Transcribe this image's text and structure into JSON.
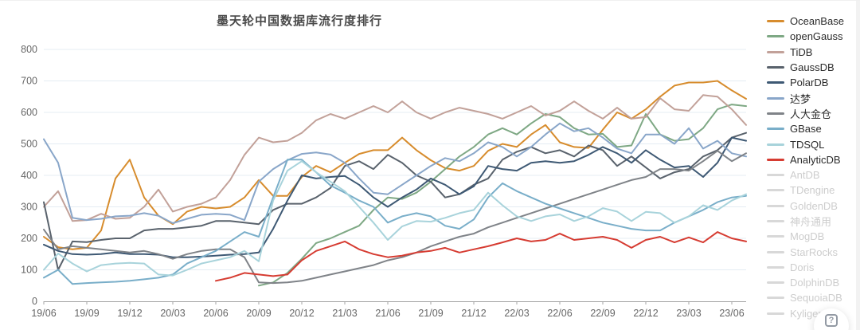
{
  "page": {
    "background": "#ffffff"
  },
  "chart_data": {
    "type": "line",
    "title": "墨天轮中国数据库流行度排行",
    "xlabel": "",
    "ylabel": "",
    "ylim": [
      0,
      800
    ],
    "y_ticks": [
      0,
      100,
      200,
      300,
      400,
      500,
      600,
      700,
      800
    ],
    "grid": true,
    "legend_position": "right",
    "x": [
      "19/06",
      "19/07",
      "19/08",
      "19/09",
      "19/10",
      "19/11",
      "19/12",
      "20/01",
      "20/02",
      "20/03",
      "20/04",
      "20/05",
      "20/06",
      "20/07",
      "20/08",
      "20/09",
      "20/10",
      "20/11",
      "20/12",
      "21/01",
      "21/02",
      "21/03",
      "21/04",
      "21/05",
      "21/06",
      "21/07",
      "21/08",
      "21/09",
      "21/10",
      "21/11",
      "21/12",
      "22/01",
      "22/02",
      "22/03",
      "22/04",
      "22/05",
      "22/06",
      "22/07",
      "22/08",
      "22/09",
      "22/10",
      "22/11",
      "22/12",
      "23/01",
      "23/02",
      "23/03",
      "23/04",
      "23/05",
      "23/06",
      "23/07"
    ],
    "x_tick_every": 3,
    "series": [
      {
        "name": "OceanBase",
        "color": "#d78c2d",
        "values": [
          205,
          172,
          165,
          170,
          225,
          390,
          450,
          330,
          272,
          245,
          285,
          300,
          295,
          300,
          330,
          385,
          335,
          335,
          395,
          430,
          410,
          440,
          468,
          480,
          480,
          520,
          480,
          448,
          423,
          415,
          430,
          478,
          500,
          490,
          530,
          560,
          505,
          490,
          487,
          545,
          600,
          580,
          610,
          650,
          685,
          695,
          695,
          700,
          670,
          643
        ]
      },
      {
        "name": "openGauss",
        "color": "#7ea884",
        "values": [
          null,
          null,
          null,
          null,
          null,
          null,
          null,
          null,
          null,
          null,
          null,
          null,
          null,
          null,
          null,
          50,
          60,
          90,
          135,
          185,
          200,
          220,
          240,
          290,
          330,
          325,
          345,
          380,
          420,
          460,
          490,
          530,
          550,
          530,
          565,
          595,
          585,
          550,
          530,
          532,
          490,
          495,
          595,
          530,
          510,
          515,
          550,
          610,
          625,
          620
        ]
      },
      {
        "name": "TiDB",
        "color": "#c2a199",
        "values": [
          300,
          350,
          255,
          258,
          278,
          262,
          265,
          300,
          355,
          285,
          300,
          310,
          330,
          385,
          465,
          520,
          505,
          510,
          535,
          575,
          595,
          580,
          600,
          620,
          600,
          635,
          600,
          580,
          600,
          615,
          605,
          595,
          580,
          600,
          620,
          590,
          605,
          635,
          605,
          580,
          615,
          580,
          585,
          645,
          610,
          605,
          655,
          650,
          610,
          560
        ]
      },
      {
        "name": "GaussDB",
        "color": "#59626c",
        "values": [
          315,
          100,
          190,
          188,
          195,
          200,
          200,
          225,
          230,
          230,
          235,
          240,
          255,
          255,
          250,
          245,
          290,
          310,
          310,
          330,
          360,
          430,
          445,
          420,
          465,
          440,
          400,
          380,
          330,
          340,
          370,
          390,
          450,
          475,
          490,
          470,
          480,
          460,
          495,
          480,
          430,
          460,
          425,
          390,
          410,
          420,
          460,
          480,
          520,
          535
        ]
      },
      {
        "name": "PolarDB",
        "color": "#3e5974",
        "values": [
          180,
          160,
          150,
          148,
          150,
          155,
          150,
          150,
          148,
          140,
          140,
          142,
          145,
          148,
          150,
          155,
          230,
          320,
          400,
          390,
          395,
          398,
          370,
          330,
          300,
          330,
          355,
          390,
          370,
          340,
          365,
          430,
          420,
          415,
          440,
          445,
          440,
          445,
          465,
          490,
          470,
          440,
          480,
          450,
          425,
          430,
          395,
          440,
          520,
          510
        ]
      },
      {
        "name": "达梦",
        "color": "#89a6c9",
        "values": [
          515,
          440,
          265,
          258,
          262,
          270,
          272,
          280,
          272,
          248,
          262,
          275,
          278,
          275,
          258,
          380,
          420,
          448,
          468,
          473,
          466,
          440,
          390,
          345,
          340,
          370,
          400,
          430,
          455,
          445,
          470,
          505,
          490,
          460,
          490,
          530,
          565,
          540,
          550,
          520,
          485,
          470,
          530,
          530,
          500,
          550,
          485,
          510,
          470,
          460
        ]
      },
      {
        "name": "人大金仓",
        "color": "#7f8388",
        "values": [
          228,
          165,
          175,
          170,
          165,
          160,
          155,
          160,
          150,
          135,
          150,
          160,
          165,
          165,
          140,
          60,
          58,
          60,
          65,
          75,
          85,
          95,
          105,
          115,
          130,
          140,
          155,
          175,
          190,
          205,
          215,
          235,
          250,
          265,
          280,
          295,
          310,
          325,
          340,
          355,
          370,
          385,
          395,
          420,
          420,
          415,
          445,
          478,
          445,
          470
        ]
      },
      {
        "name": "GBase",
        "color": "#79aec9",
        "values": [
          75,
          100,
          55,
          58,
          60,
          62,
          65,
          70,
          75,
          85,
          120,
          140,
          160,
          190,
          220,
          205,
          330,
          450,
          450,
          410,
          368,
          345,
          320,
          300,
          250,
          270,
          280,
          270,
          240,
          230,
          260,
          330,
          375,
          350,
          330,
          310,
          295,
          280,
          265,
          250,
          240,
          230,
          225,
          225,
          250,
          270,
          290,
          315,
          330,
          335
        ]
      },
      {
        "name": "TDSQL",
        "color": "#a8d3db",
        "values": [
          100,
          152,
          120,
          95,
          115,
          120,
          122,
          120,
          85,
          82,
          100,
          120,
          130,
          140,
          160,
          127,
          320,
          415,
          445,
          410,
          380,
          350,
          300,
          250,
          195,
          238,
          255,
          253,
          265,
          280,
          290,
          345,
          305,
          270,
          255,
          270,
          276,
          255,
          270,
          296,
          285,
          255,
          284,
          280,
          250,
          270,
          305,
          290,
          320,
          340
        ]
      },
      {
        "name": "AnalyticDB",
        "color": "#d63c32",
        "values": [
          null,
          null,
          null,
          null,
          null,
          null,
          null,
          null,
          null,
          null,
          null,
          null,
          65,
          75,
          90,
          85,
          80,
          85,
          130,
          160,
          175,
          190,
          165,
          150,
          140,
          145,
          155,
          160,
          170,
          155,
          165,
          175,
          187,
          200,
          190,
          195,
          215,
          195,
          200,
          205,
          195,
          170,
          195,
          205,
          187,
          203,
          187,
          220,
          200,
          190
        ]
      }
    ],
    "legend_disabled": [
      "AntDB",
      "TDengine",
      "GoldenDB",
      "神舟通用",
      "MogDB",
      "StarRocks",
      "Doris",
      "DolphinDB",
      "SequoiaDB",
      "Kyligence"
    ],
    "styles": {
      "grid_color": "#e4ecf3",
      "axis_color": "#a3a3a3",
      "tick_label_color": "#666666",
      "title_color": "#4a4a4a",
      "disabled_color": "#d8d8d8",
      "disabled_text_color": "#cdcdcd"
    }
  },
  "help_button": {
    "glyph": "?"
  }
}
